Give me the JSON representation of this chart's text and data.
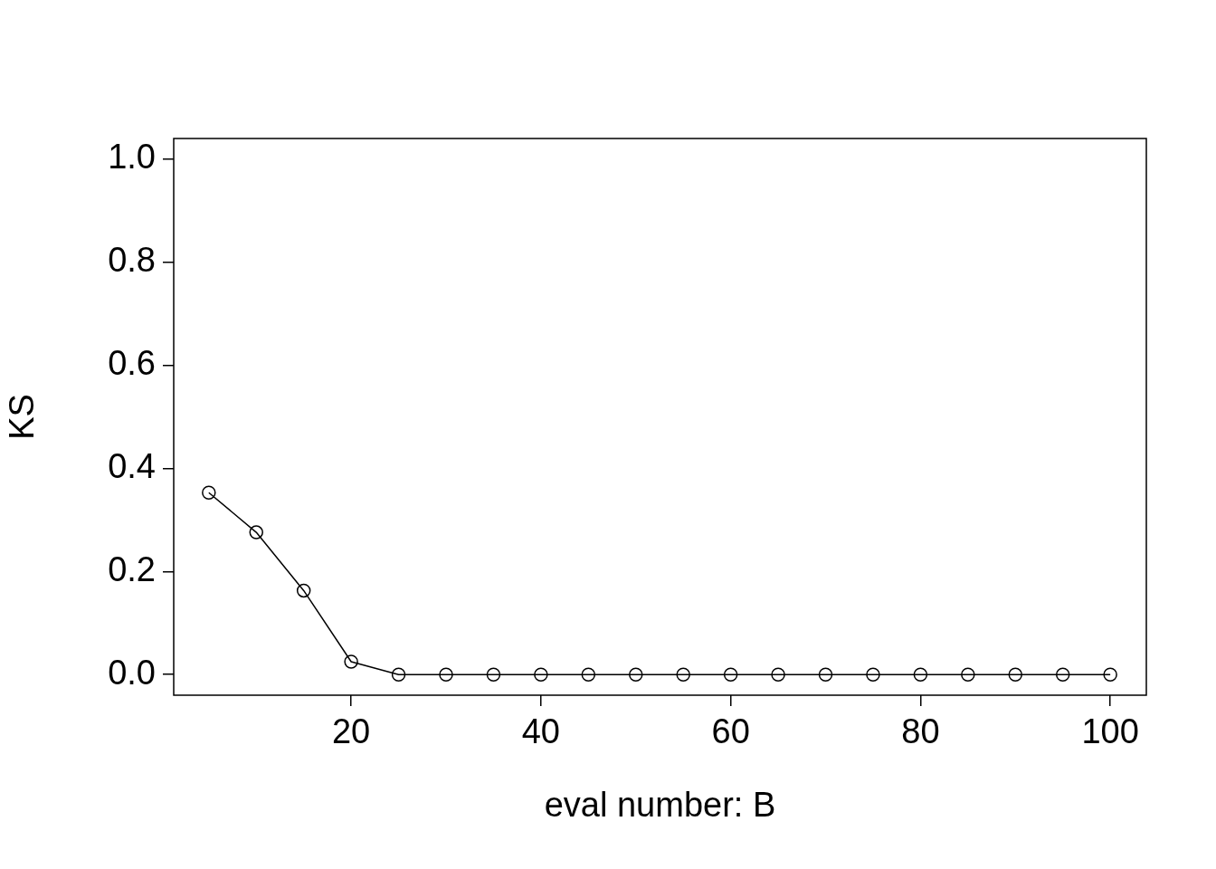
{
  "chart_data": {
    "type": "line",
    "xlabel": "eval number: B",
    "ylabel": "KS",
    "x": [
      5,
      10,
      15,
      20,
      25,
      30,
      35,
      40,
      45,
      50,
      55,
      60,
      65,
      70,
      75,
      80,
      85,
      90,
      95,
      100
    ],
    "series": [
      {
        "color": "#000000",
        "values": [
          0.353,
          0.276,
          0.163,
          0.025,
          0,
          0,
          0,
          0,
          0,
          0,
          0,
          0,
          0,
          0,
          0,
          0,
          0,
          0,
          0,
          0
        ]
      }
    ],
    "xlim": [
      1.3,
      103.8
    ],
    "xticks": [
      20,
      40,
      60,
      80,
      100
    ],
    "ylim": [
      -0.04,
      1.04
    ],
    "yticks": [
      {
        "value": 0,
        "label": "0.0"
      },
      {
        "value": 0.2,
        "label": "0.2"
      },
      {
        "value": 0.4,
        "label": "0.4"
      },
      {
        "value": 0.6,
        "label": "0.6"
      },
      {
        "value": 0.8,
        "label": "0.8"
      },
      {
        "value": 1,
        "label": "1.0"
      }
    ],
    "grid": false,
    "legend": false,
    "marker": "circle",
    "line_style": "solid"
  }
}
